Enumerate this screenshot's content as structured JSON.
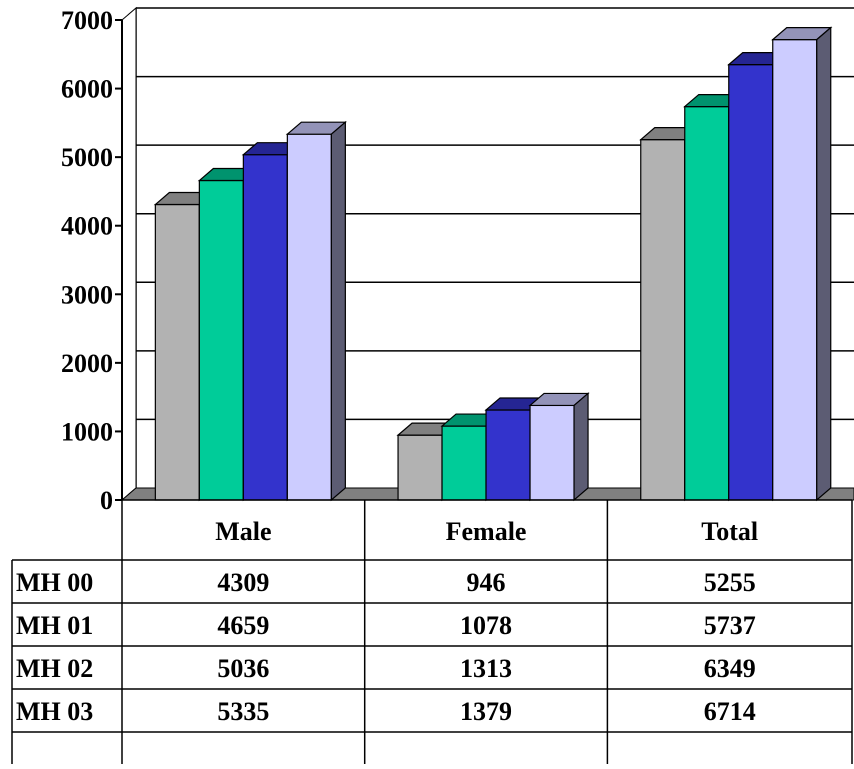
{
  "chart_data": {
    "type": "bar",
    "title": "",
    "xlabel": "",
    "ylabel": "",
    "categories": [
      "Male",
      "Female",
      "Total"
    ],
    "series": [
      {
        "name": "MH 00",
        "values": [
          4309,
          946,
          5255
        ],
        "color": "#b2b2b2"
      },
      {
        "name": "MH 01",
        "values": [
          4659,
          1078,
          5737
        ],
        "color": "#00cc99"
      },
      {
        "name": "MH 02",
        "values": [
          5036,
          1313,
          6349
        ],
        "color": "#3333cc"
      },
      {
        "name": "MH 03",
        "values": [
          5335,
          1379,
          6714
        ],
        "color": "#ccccff"
      }
    ],
    "ylim": [
      0,
      7000
    ],
    "yticks": [
      "0",
      "1000",
      "2000",
      "3000",
      "4000",
      "5000",
      "6000",
      "7000"
    ],
    "grid": true,
    "legend": "data-table-below",
    "style": "3d-clustered-column"
  }
}
